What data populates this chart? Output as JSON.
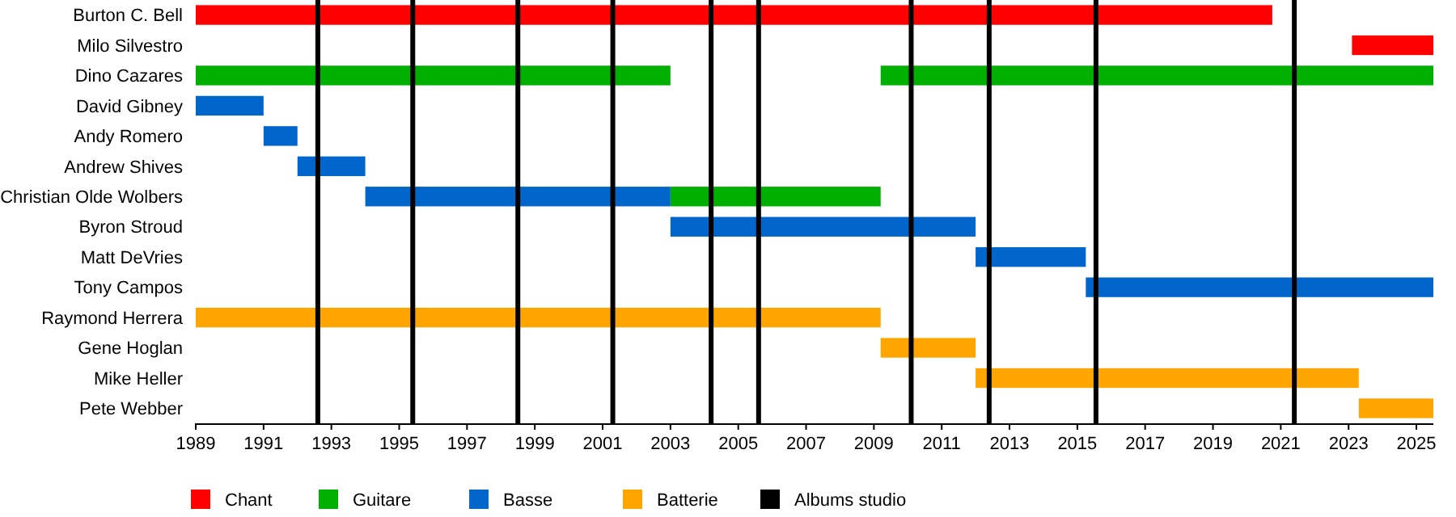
{
  "chart_data": {
    "type": "bar",
    "orientation": "horizontal",
    "categories": [
      "Burton C. Bell",
      "Milo Silvestro",
      "Dino Cazares",
      "David Gibney",
      "Andy Romero",
      "Andrew Shives",
      "Christian Olde Wolbers",
      "Byron Stroud",
      "Matt DeVries",
      "Tony Campos",
      "Raymond Herrera",
      "Gene Hoglan",
      "Mike Heller",
      "Pete Webber"
    ],
    "series": [
      {
        "name": "Chant",
        "color": "#ff0000",
        "base": [
          1989,
          2023.1,
          null,
          null,
          null,
          null,
          null,
          null,
          null,
          null,
          null,
          null,
          null,
          null
        ],
        "values": [
          31.75,
          2.4,
          null,
          null,
          null,
          null,
          null,
          null,
          null,
          null,
          null,
          null,
          null,
          null
        ]
      },
      {
        "name": "Guitare",
        "color": "#00b000",
        "base": [
          null,
          null,
          1989,
          null,
          null,
          null,
          2003,
          null,
          null,
          null,
          null,
          null,
          null,
          null
        ],
        "values": [
          null,
          null,
          14,
          null,
          null,
          null,
          6.2,
          null,
          null,
          null,
          null,
          null,
          null,
          null
        ]
      },
      {
        "color": "#00b000",
        "base": [
          null,
          null,
          2009.2,
          null,
          null,
          null,
          null,
          null,
          null,
          null,
          null,
          null,
          null,
          null
        ],
        "values": [
          null,
          null,
          16.3,
          null,
          null,
          null,
          null,
          null,
          null,
          null,
          null,
          null,
          null,
          null
        ]
      },
      {
        "name": "Basse",
        "color": "#0066cc",
        "base": [
          null,
          null,
          null,
          1989,
          1991,
          1992,
          1994,
          2003,
          2012,
          2015.25,
          null,
          null,
          null,
          null
        ],
        "values": [
          null,
          null,
          null,
          2,
          1,
          2,
          9,
          9,
          3.25,
          10.25,
          null,
          null,
          null,
          null
        ]
      },
      {
        "name": "Batterie",
        "color": "#ffa500",
        "base": [
          null,
          null,
          null,
          null,
          null,
          null,
          null,
          null,
          null,
          null,
          1989,
          2009.2,
          2012,
          2023.3
        ],
        "values": [
          null,
          null,
          null,
          null,
          null,
          null,
          null,
          null,
          null,
          null,
          20.2,
          2.8,
          11.3,
          2.2
        ]
      }
    ],
    "xlim": [
      1989,
      2025.5
    ],
    "xticks": [
      1989,
      1991,
      1993,
      1995,
      1997,
      1999,
      2001,
      2003,
      2005,
      2007,
      2009,
      2011,
      2013,
      2015,
      2017,
      2019,
      2021,
      2023,
      2025
    ],
    "ref_lines": [
      {
        "axis": "x",
        "value": 1992.6,
        "label": "Albums studio",
        "color": "#000000"
      },
      {
        "axis": "x",
        "value": 1995.4,
        "color": "#000000"
      },
      {
        "axis": "x",
        "value": 1998.5,
        "color": "#000000"
      },
      {
        "axis": "x",
        "value": 2001.3,
        "color": "#000000"
      },
      {
        "axis": "x",
        "value": 2004.2,
        "color": "#000000"
      },
      {
        "axis": "x",
        "value": 2005.6,
        "color": "#000000"
      },
      {
        "axis": "x",
        "value": 2010.1,
        "color": "#000000"
      },
      {
        "axis": "x",
        "value": 2012.4,
        "color": "#000000"
      },
      {
        "axis": "x",
        "value": 2015.55,
        "color": "#000000"
      },
      {
        "axis": "x",
        "value": 2021.4,
        "color": "#000000"
      }
    ],
    "grid": false,
    "legend": "bottom"
  }
}
